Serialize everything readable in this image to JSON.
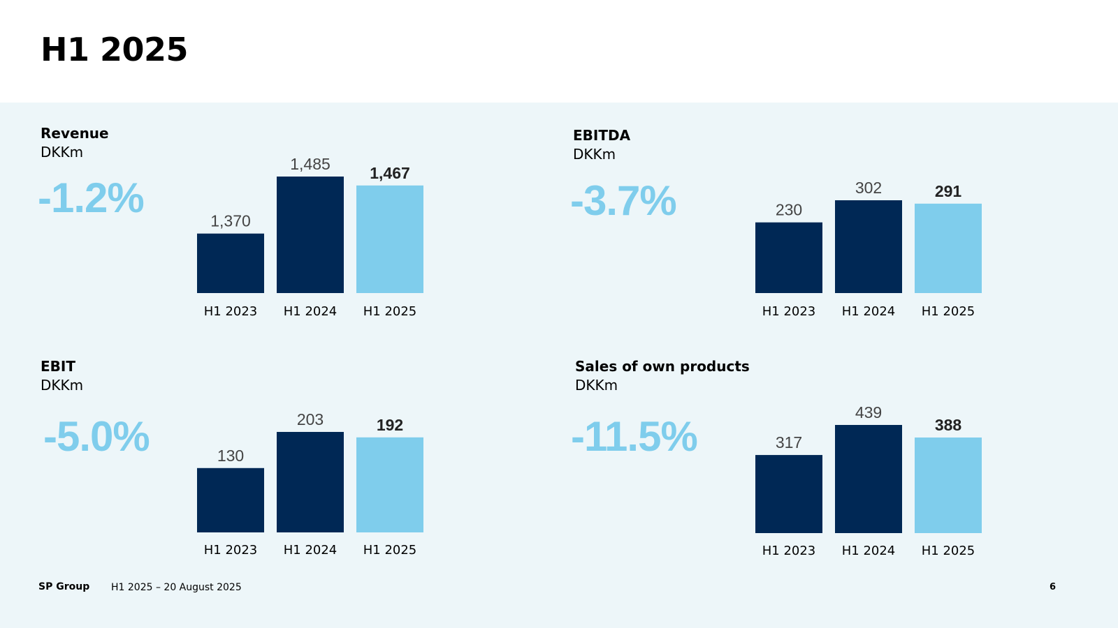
{
  "slide": {
    "title": "H1 2025"
  },
  "colors": {
    "dark_bar": "#002855",
    "highlight_bar": "#7fcdec",
    "change_text": "#7fcdec",
    "panel_bg": "#edf6f9"
  },
  "chart_data": [
    {
      "type": "bar",
      "title": "Revenue",
      "unit": "DKKm",
      "change": "-1.2%",
      "categories": [
        "H1 2023",
        "H1 2024",
        "H1 2025"
      ],
      "values": [
        1370,
        1485,
        1467
      ],
      "value_labels": [
        "1,370",
        "1,485",
        "1,467"
      ],
      "highlight_index": 2
    },
    {
      "type": "bar",
      "title": "EBITDA",
      "unit": "DKKm",
      "change": "-3.7%",
      "categories": [
        "H1 2023",
        "H1 2024",
        "H1 2025"
      ],
      "values": [
        230,
        302,
        291
      ],
      "value_labels": [
        "230",
        "302",
        "291"
      ],
      "highlight_index": 2
    },
    {
      "type": "bar",
      "title": "EBIT",
      "unit": "DKKm",
      "change": "-5.0%",
      "categories": [
        "H1 2023",
        "H1 2024",
        "H1 2025"
      ],
      "values": [
        130,
        203,
        192
      ],
      "value_labels": [
        "130",
        "203",
        "192"
      ],
      "highlight_index": 2
    },
    {
      "type": "bar",
      "title": "Sales of own products",
      "unit": "DKKm",
      "change": "-11.5%",
      "categories": [
        "H1 2023",
        "H1 2024",
        "H1 2025"
      ],
      "values": [
        317,
        439,
        388
      ],
      "value_labels": [
        "317",
        "439",
        "388"
      ],
      "highlight_index": 2
    }
  ],
  "footer": {
    "brand": "SP Group",
    "text": "H1 2025 – 20 August 2025",
    "page": "6"
  }
}
